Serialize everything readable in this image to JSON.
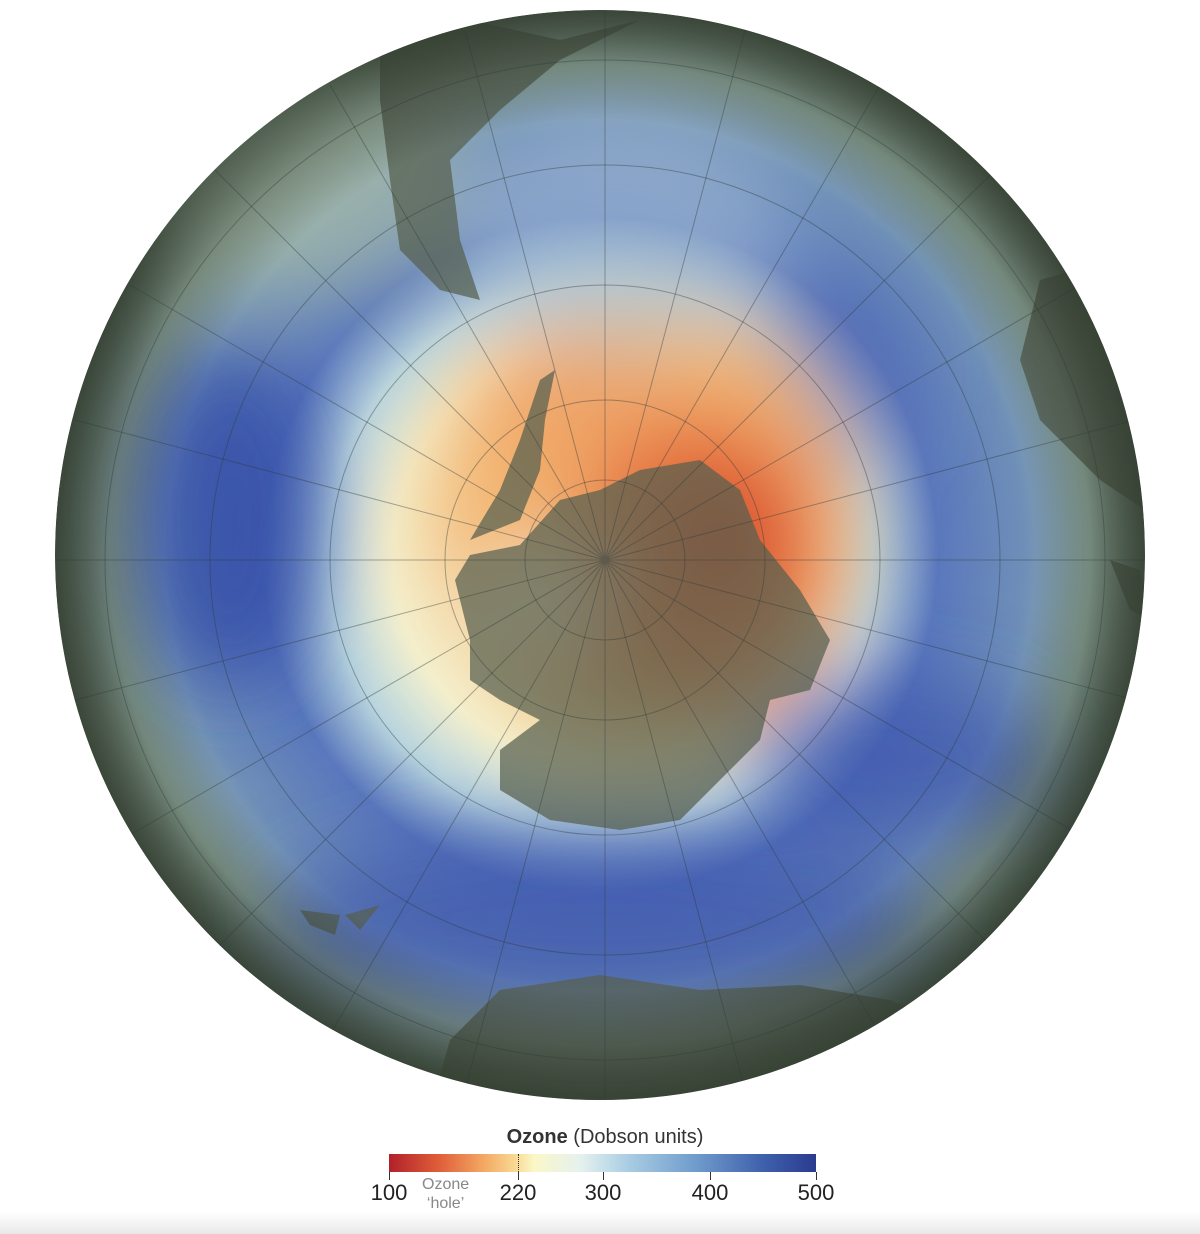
{
  "legend": {
    "title_bold": "Ozone",
    "title_rest": " (Dobson units)",
    "hole_label_line1": "Ozone",
    "hole_label_line2": "‘hole’",
    "ticks": [
      "100",
      "220",
      "300",
      "400",
      "500"
    ],
    "range": [
      100,
      500
    ],
    "hole_threshold": 220,
    "colors": {
      "low": "#b2202a",
      "threshold": "#fbf7c8",
      "high": "#2a3b8f"
    }
  },
  "map": {
    "projection": "orthographic south polar",
    "land_color": "#6b7566"
  }
}
